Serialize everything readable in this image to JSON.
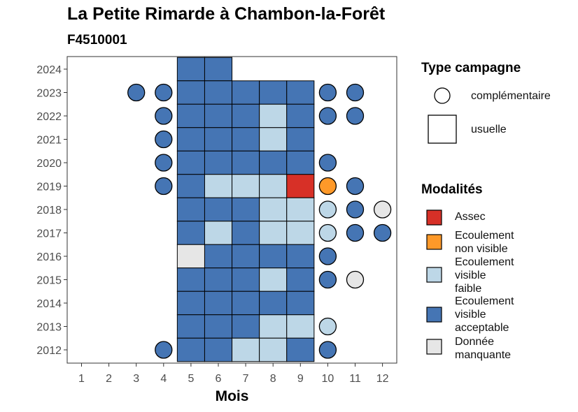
{
  "chart_data": {
    "type": "heatmap",
    "title": "La Petite Rimarde à Chambon-la-Forêt",
    "subtitle": "F4510001",
    "xlabel": "Mois",
    "ylabel": "",
    "x_ticks": [
      1,
      2,
      3,
      4,
      5,
      6,
      7,
      8,
      9,
      10,
      11,
      12
    ],
    "y_ticks": [
      2012,
      2013,
      2014,
      2015,
      2016,
      2017,
      2018,
      2019,
      2020,
      2021,
      2022,
      2023,
      2024
    ],
    "legend_type": {
      "title": "Type campagne",
      "items": [
        {
          "key": "complementaire",
          "label": "complémentaire",
          "shape": "circle"
        },
        {
          "key": "usuelle",
          "label": "usuelle",
          "shape": "square"
        }
      ]
    },
    "legend_modalites": {
      "title": "Modalités",
      "items": [
        {
          "key": "assec",
          "label_lines": [
            "Assec"
          ],
          "color": "#d73027"
        },
        {
          "key": "nonvisible",
          "label_lines": [
            "Ecoulement",
            "non visible"
          ],
          "color": "#fe9929"
        },
        {
          "key": "faible",
          "label_lines": [
            "Ecoulement",
            "visible",
            "faible"
          ],
          "color": "#bdd7e7"
        },
        {
          "key": "acceptable",
          "label_lines": [
            "Ecoulement",
            "visible",
            "acceptable"
          ],
          "color": "#4575b4"
        },
        {
          "key": "manquante",
          "label_lines": [
            "Donnée",
            "manquante"
          ],
          "color": "#e6e6e6"
        }
      ]
    },
    "usuelle": [
      {
        "year": 2024,
        "month": 5,
        "v": "acceptable"
      },
      {
        "year": 2024,
        "month": 6,
        "v": "acceptable"
      },
      {
        "year": 2023,
        "month": 5,
        "v": "acceptable"
      },
      {
        "year": 2023,
        "month": 6,
        "v": "acceptable"
      },
      {
        "year": 2023,
        "month": 7,
        "v": "acceptable"
      },
      {
        "year": 2023,
        "month": 8,
        "v": "acceptable"
      },
      {
        "year": 2023,
        "month": 9,
        "v": "acceptable"
      },
      {
        "year": 2022,
        "month": 5,
        "v": "acceptable"
      },
      {
        "year": 2022,
        "month": 6,
        "v": "acceptable"
      },
      {
        "year": 2022,
        "month": 7,
        "v": "acceptable"
      },
      {
        "year": 2022,
        "month": 8,
        "v": "faible"
      },
      {
        "year": 2022,
        "month": 9,
        "v": "acceptable"
      },
      {
        "year": 2021,
        "month": 5,
        "v": "acceptable"
      },
      {
        "year": 2021,
        "month": 6,
        "v": "acceptable"
      },
      {
        "year": 2021,
        "month": 7,
        "v": "acceptable"
      },
      {
        "year": 2021,
        "month": 8,
        "v": "faible"
      },
      {
        "year": 2021,
        "month": 9,
        "v": "acceptable"
      },
      {
        "year": 2020,
        "month": 5,
        "v": "acceptable"
      },
      {
        "year": 2020,
        "month": 6,
        "v": "acceptable"
      },
      {
        "year": 2020,
        "month": 7,
        "v": "acceptable"
      },
      {
        "year": 2020,
        "month": 8,
        "v": "acceptable"
      },
      {
        "year": 2020,
        "month": 9,
        "v": "acceptable"
      },
      {
        "year": 2019,
        "month": 5,
        "v": "acceptable"
      },
      {
        "year": 2019,
        "month": 6,
        "v": "faible"
      },
      {
        "year": 2019,
        "month": 7,
        "v": "faible"
      },
      {
        "year": 2019,
        "month": 8,
        "v": "faible"
      },
      {
        "year": 2019,
        "month": 9,
        "v": "assec"
      },
      {
        "year": 2018,
        "month": 5,
        "v": "acceptable"
      },
      {
        "year": 2018,
        "month": 6,
        "v": "acceptable"
      },
      {
        "year": 2018,
        "month": 7,
        "v": "acceptable"
      },
      {
        "year": 2018,
        "month": 8,
        "v": "faible"
      },
      {
        "year": 2018,
        "month": 9,
        "v": "faible"
      },
      {
        "year": 2017,
        "month": 5,
        "v": "acceptable"
      },
      {
        "year": 2017,
        "month": 6,
        "v": "faible"
      },
      {
        "year": 2017,
        "month": 7,
        "v": "acceptable"
      },
      {
        "year": 2017,
        "month": 8,
        "v": "faible"
      },
      {
        "year": 2017,
        "month": 9,
        "v": "faible"
      },
      {
        "year": 2016,
        "month": 5,
        "v": "manquante"
      },
      {
        "year": 2016,
        "month": 6,
        "v": "acceptable"
      },
      {
        "year": 2016,
        "month": 7,
        "v": "acceptable"
      },
      {
        "year": 2016,
        "month": 8,
        "v": "acceptable"
      },
      {
        "year": 2016,
        "month": 9,
        "v": "acceptable"
      },
      {
        "year": 2015,
        "month": 5,
        "v": "acceptable"
      },
      {
        "year": 2015,
        "month": 6,
        "v": "acceptable"
      },
      {
        "year": 2015,
        "month": 7,
        "v": "acceptable"
      },
      {
        "year": 2015,
        "month": 8,
        "v": "faible"
      },
      {
        "year": 2015,
        "month": 9,
        "v": "acceptable"
      },
      {
        "year": 2014,
        "month": 5,
        "v": "acceptable"
      },
      {
        "year": 2014,
        "month": 6,
        "v": "acceptable"
      },
      {
        "year": 2014,
        "month": 7,
        "v": "acceptable"
      },
      {
        "year": 2014,
        "month": 8,
        "v": "acceptable"
      },
      {
        "year": 2014,
        "month": 9,
        "v": "acceptable"
      },
      {
        "year": 2013,
        "month": 5,
        "v": "acceptable"
      },
      {
        "year": 2013,
        "month": 6,
        "v": "acceptable"
      },
      {
        "year": 2013,
        "month": 7,
        "v": "acceptable"
      },
      {
        "year": 2013,
        "month": 8,
        "v": "faible"
      },
      {
        "year": 2013,
        "month": 9,
        "v": "faible"
      },
      {
        "year": 2012,
        "month": 5,
        "v": "acceptable"
      },
      {
        "year": 2012,
        "month": 6,
        "v": "acceptable"
      },
      {
        "year": 2012,
        "month": 7,
        "v": "faible"
      },
      {
        "year": 2012,
        "month": 8,
        "v": "faible"
      },
      {
        "year": 2012,
        "month": 9,
        "v": "acceptable"
      }
    ],
    "complementaire": [
      {
        "year": 2023,
        "month": 3,
        "v": "acceptable"
      },
      {
        "year": 2023,
        "month": 4,
        "v": "acceptable"
      },
      {
        "year": 2023,
        "month": 10,
        "v": "acceptable"
      },
      {
        "year": 2023,
        "month": 11,
        "v": "acceptable"
      },
      {
        "year": 2022,
        "month": 4,
        "v": "acceptable"
      },
      {
        "year": 2022,
        "month": 10,
        "v": "acceptable"
      },
      {
        "year": 2022,
        "month": 11,
        "v": "acceptable"
      },
      {
        "year": 2021,
        "month": 4,
        "v": "acceptable"
      },
      {
        "year": 2020,
        "month": 4,
        "v": "acceptable"
      },
      {
        "year": 2020,
        "month": 10,
        "v": "acceptable"
      },
      {
        "year": 2019,
        "month": 4,
        "v": "acceptable"
      },
      {
        "year": 2019,
        "month": 10,
        "v": "nonvisible"
      },
      {
        "year": 2019,
        "month": 11,
        "v": "acceptable"
      },
      {
        "year": 2018,
        "month": 10,
        "v": "faible"
      },
      {
        "year": 2018,
        "month": 11,
        "v": "acceptable"
      },
      {
        "year": 2018,
        "month": 12,
        "v": "manquante"
      },
      {
        "year": 2017,
        "month": 10,
        "v": "faible"
      },
      {
        "year": 2017,
        "month": 11,
        "v": "acceptable"
      },
      {
        "year": 2017,
        "month": 12,
        "v": "acceptable"
      },
      {
        "year": 2016,
        "month": 10,
        "v": "acceptable"
      },
      {
        "year": 2015,
        "month": 10,
        "v": "acceptable"
      },
      {
        "year": 2015,
        "month": 11,
        "v": "manquante"
      },
      {
        "year": 2013,
        "month": 10,
        "v": "faible"
      },
      {
        "year": 2012,
        "month": 4,
        "v": "acceptable"
      },
      {
        "year": 2012,
        "month": 10,
        "v": "acceptable"
      }
    ]
  }
}
